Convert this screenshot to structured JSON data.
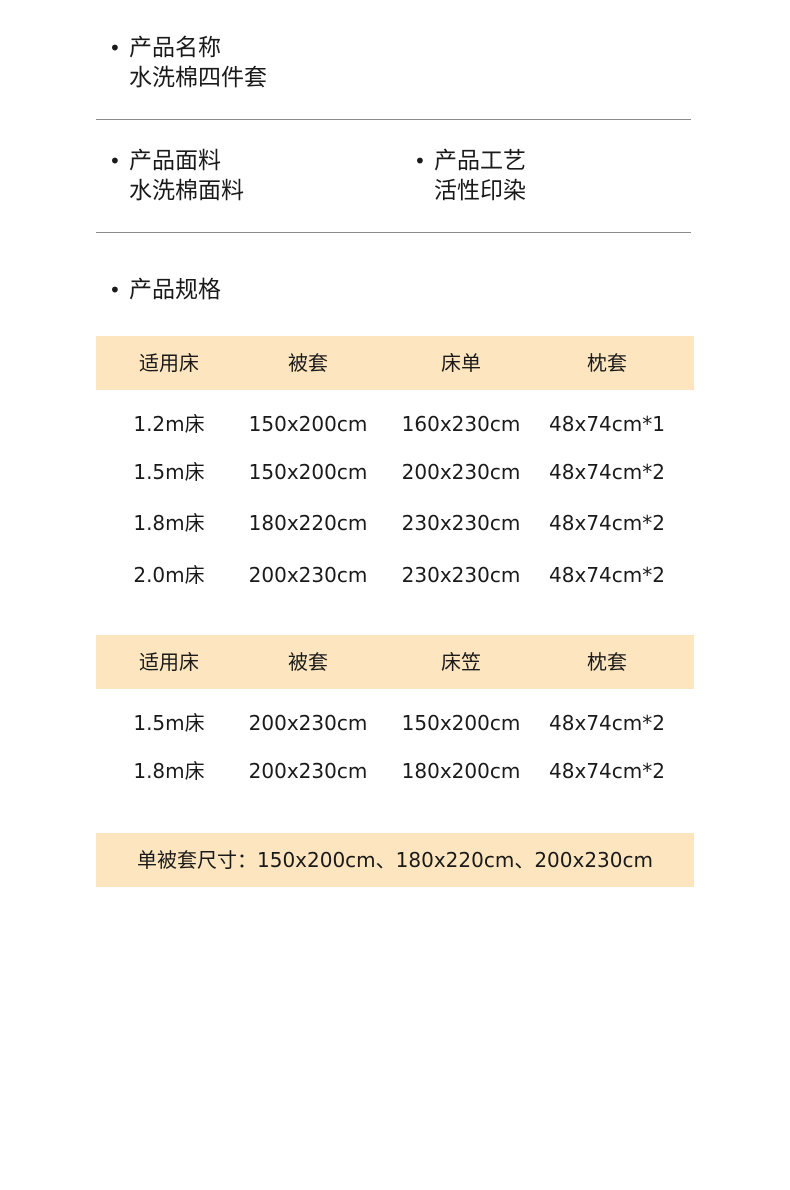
{
  "product_name": {
    "label": "产品名称",
    "value": "水洗棉四件套"
  },
  "fabric": {
    "label": "产品面料",
    "value": "水洗棉面料"
  },
  "craft": {
    "label": "产品工艺",
    "value": "活性印染"
  },
  "spec": {
    "label": "产品规格"
  },
  "table1": {
    "headers": [
      "适用床",
      "被套",
      "床单",
      "枕套"
    ],
    "rows": [
      [
        "1.2m床",
        "150x200cm",
        "160x230cm",
        "48x74cm*1"
      ],
      [
        "1.5m床",
        "150x200cm",
        "200x230cm",
        "48x74cm*2"
      ],
      [
        "1.8m床",
        "180x220cm",
        "230x230cm",
        "48x74cm*2"
      ],
      [
        "2.0m床",
        "200x230cm",
        "230x230cm",
        "48x74cm*2"
      ]
    ]
  },
  "table2": {
    "headers": [
      "适用床",
      "被套",
      "床笠",
      "枕套"
    ],
    "rows": [
      [
        "1.5m床",
        "200x230cm",
        "150x200cm",
        "48x74cm*2"
      ],
      [
        "1.8m床",
        "200x230cm",
        "180x200cm",
        "48x74cm*2"
      ]
    ]
  },
  "footer": {
    "text": "单被套尺寸：150x200cm、180x220cm、200x230cm"
  },
  "colors": {
    "band": "#fde6bf",
    "rule": "#8a8a8a"
  }
}
